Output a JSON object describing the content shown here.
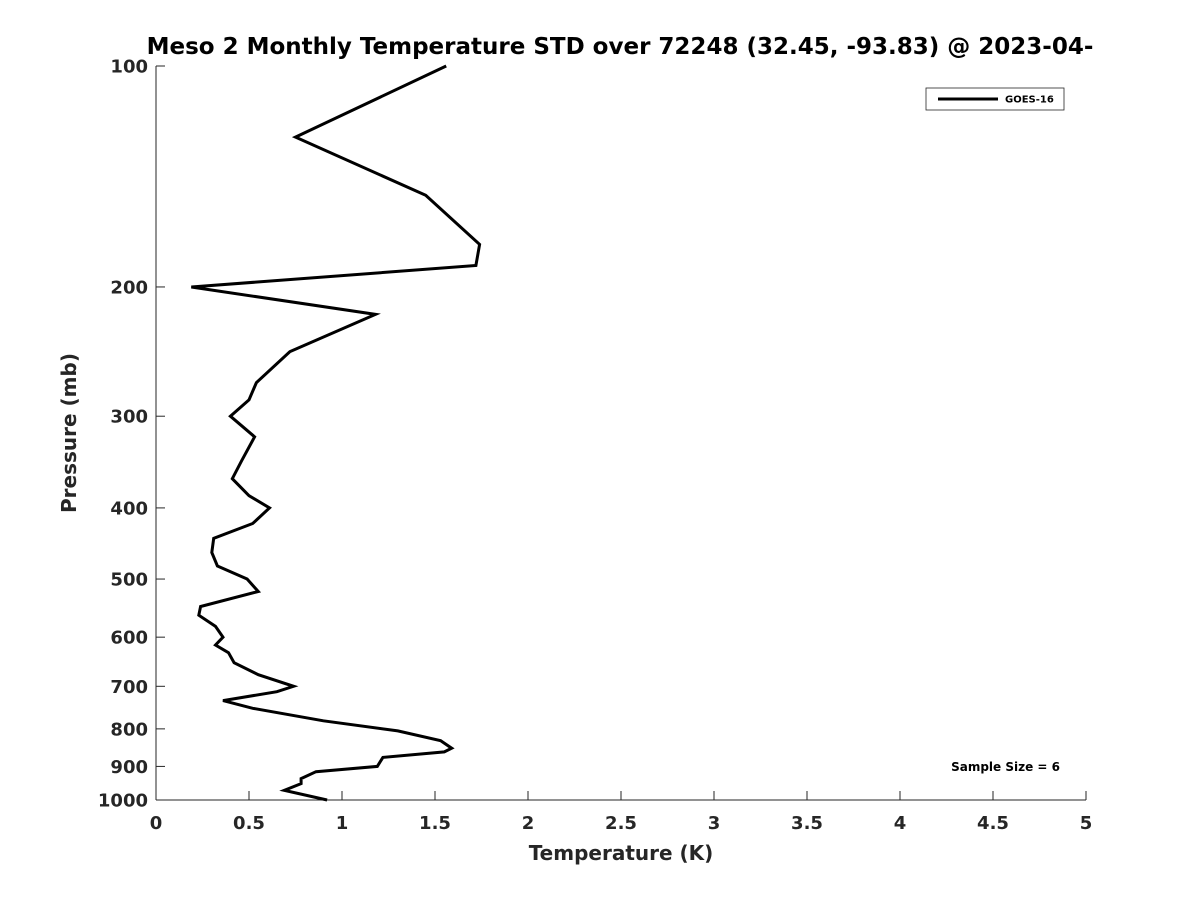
{
  "chart_data": {
    "type": "line",
    "title": "Meso 2 Monthly Temperature STD over 72248 (32.45, -93.83) @ 2023-04-",
    "xlabel": "Temperature (K)",
    "ylabel": "Pressure (mb)",
    "xlim": [
      0,
      5
    ],
    "ylim": [
      100,
      1000
    ],
    "y_scale": "log",
    "y_reversed": true,
    "grid": false,
    "legend_position": "top-right",
    "x_ticks": [
      "0",
      "0.5",
      "1",
      "1.5",
      "2",
      "2.5",
      "3",
      "3.5",
      "4",
      "4.5",
      "5"
    ],
    "y_ticks": [
      "100",
      "200",
      "300",
      "400",
      "500",
      "600",
      "700",
      "800",
      "900",
      "1000"
    ],
    "series": [
      {
        "name": "GOES-16",
        "color": "#000000",
        "points": [
          [
            1.56,
            100
          ],
          [
            0.75,
            125
          ],
          [
            1.45,
            150
          ],
          [
            1.74,
            175
          ],
          [
            1.72,
            187
          ],
          [
            0.19,
            200
          ],
          [
            1.18,
            218
          ],
          [
            0.72,
            245
          ],
          [
            0.54,
            270
          ],
          [
            0.5,
            285
          ],
          [
            0.4,
            300
          ],
          [
            0.53,
            320
          ],
          [
            0.46,
            345
          ],
          [
            0.41,
            365
          ],
          [
            0.5,
            385
          ],
          [
            0.61,
            400
          ],
          [
            0.52,
            420
          ],
          [
            0.31,
            440
          ],
          [
            0.3,
            460
          ],
          [
            0.33,
            480
          ],
          [
            0.49,
            500
          ],
          [
            0.55,
            520
          ],
          [
            0.24,
            545
          ],
          [
            0.23,
            560
          ],
          [
            0.32,
            580
          ],
          [
            0.36,
            600
          ],
          [
            0.32,
            615
          ],
          [
            0.39,
            630
          ],
          [
            0.42,
            650
          ],
          [
            0.55,
            675
          ],
          [
            0.74,
            700
          ],
          [
            0.65,
            712
          ],
          [
            0.36,
            732
          ],
          [
            0.52,
            750
          ],
          [
            0.9,
            780
          ],
          [
            1.3,
            805
          ],
          [
            1.53,
            830
          ],
          [
            1.59,
            850
          ],
          [
            1.55,
            860
          ],
          [
            1.22,
            875
          ],
          [
            1.19,
            900
          ],
          [
            0.86,
            915
          ],
          [
            0.78,
            935
          ],
          [
            0.78,
            950
          ],
          [
            0.69,
            970
          ],
          [
            0.92,
            1000
          ]
        ]
      }
    ],
    "annotation": "Sample Size = 6"
  }
}
